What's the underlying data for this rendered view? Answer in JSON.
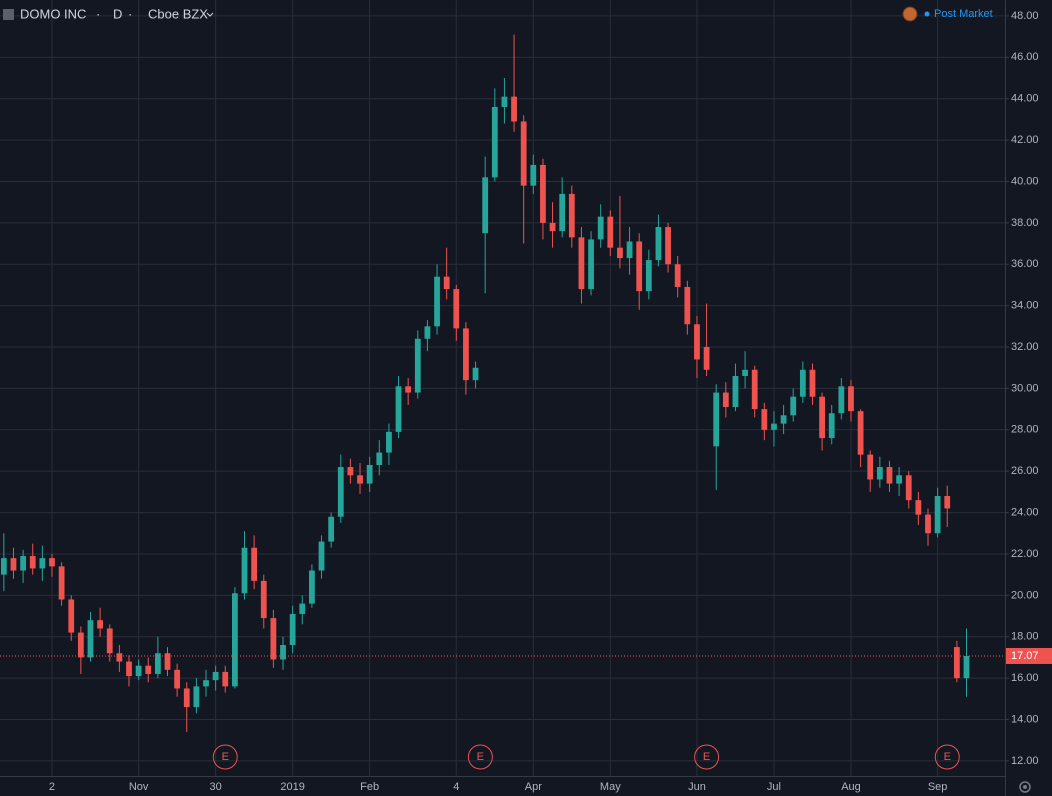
{
  "chart_data": {
    "type": "candlestick",
    "title": "DOMO INC",
    "interval": "D",
    "exchange": "Cboe BZX",
    "session": "Post Market",
    "up_color": "#26a69a",
    "down_color": "#ef5350",
    "grid": true,
    "ylim": [
      11.27,
      48.77
    ],
    "xlim": [
      -0.4,
      104
    ],
    "yticks": [
      {
        "value": 12,
        "label": "12.00"
      },
      {
        "value": 14,
        "label": "14.00"
      },
      {
        "value": 16,
        "label": "16.00"
      },
      {
        "value": 18,
        "label": "18.00"
      },
      {
        "value": 20,
        "label": "20.00"
      },
      {
        "value": 22,
        "label": "22.00"
      },
      {
        "value": 24,
        "label": "24.00"
      },
      {
        "value": 26,
        "label": "26.00"
      },
      {
        "value": 28,
        "label": "28.00"
      },
      {
        "value": 30,
        "label": "30.00"
      },
      {
        "value": 32,
        "label": "32.00"
      },
      {
        "value": 34,
        "label": "34.00"
      },
      {
        "value": 36,
        "label": "36.00"
      },
      {
        "value": 38,
        "label": "38.00"
      },
      {
        "value": 40,
        "label": "40.00"
      },
      {
        "value": 42,
        "label": "42.00"
      },
      {
        "value": 44,
        "label": "44.00"
      },
      {
        "value": 46,
        "label": "46.00"
      },
      {
        "value": 48,
        "label": "48.00"
      }
    ],
    "xticks": [
      {
        "value": 5,
        "label": "2"
      },
      {
        "value": 14,
        "label": "Nov"
      },
      {
        "value": 22,
        "label": "30"
      },
      {
        "value": 30,
        "label": "2019"
      },
      {
        "value": 38,
        "label": "Feb"
      },
      {
        "value": 47,
        "label": "4"
      },
      {
        "value": 55,
        "label": "Apr"
      },
      {
        "value": 63,
        "label": "May"
      },
      {
        "value": 72,
        "label": "Jun"
      },
      {
        "value": 80,
        "label": "Jul"
      },
      {
        "value": 88,
        "label": "Aug"
      },
      {
        "value": 97,
        "label": "Sep"
      }
    ],
    "events": [
      {
        "index": 23,
        "label": "E"
      },
      {
        "index": 49.5,
        "label": "E"
      },
      {
        "index": 73,
        "label": "E"
      },
      {
        "index": 98,
        "label": "E"
      }
    ],
    "ohlc": [
      [
        21,
        23,
        20.2,
        21.8
      ],
      [
        21.8,
        22.3,
        20.8,
        21.2
      ],
      [
        21.2,
        22.2,
        20.6,
        21.9
      ],
      [
        21.9,
        22.5,
        21,
        21.3
      ],
      [
        21.3,
        22.4,
        20.7,
        21.8
      ],
      [
        21.8,
        22,
        20.9,
        21.4
      ],
      [
        21.4,
        21.6,
        19.5,
        19.8
      ],
      [
        19.8,
        20,
        17.8,
        18.2
      ],
      [
        18.2,
        18.5,
        16.2,
        17
      ],
      [
        17,
        19.2,
        16.8,
        18.8
      ],
      [
        18.8,
        19.4,
        18,
        18.4
      ],
      [
        18.4,
        18.6,
        16.8,
        17.2
      ],
      [
        17.2,
        17.6,
        16.3,
        16.8
      ],
      [
        16.8,
        17.1,
        15.6,
        16.1
      ],
      [
        16.1,
        16.9,
        15.9,
        16.6
      ],
      [
        16.6,
        17,
        15.8,
        16.2
      ],
      [
        16.2,
        18,
        16,
        17.2
      ],
      [
        17.2,
        17.5,
        16.1,
        16.4
      ],
      [
        16.4,
        16.7,
        15.1,
        15.5
      ],
      [
        15.5,
        15.8,
        13.4,
        14.6
      ],
      [
        14.6,
        16,
        14.3,
        15.6
      ],
      [
        15.6,
        16.4,
        15.1,
        15.9
      ],
      [
        15.9,
        16.6,
        15.4,
        16.3
      ],
      [
        16.3,
        16.6,
        15.3,
        15.6
      ],
      [
        15.6,
        20.4,
        15.5,
        20.1
      ],
      [
        20.1,
        23.1,
        19.8,
        22.3
      ],
      [
        22.3,
        22.9,
        20.3,
        20.7
      ],
      [
        20.7,
        21,
        18.4,
        18.9
      ],
      [
        18.9,
        19.3,
        16.5,
        16.9
      ],
      [
        16.9,
        18,
        16.4,
        17.6
      ],
      [
        17.6,
        19.5,
        17.2,
        19.1
      ],
      [
        19.1,
        20,
        18.6,
        19.6
      ],
      [
        19.6,
        21.5,
        19.4,
        21.2
      ],
      [
        21.2,
        22.9,
        20.8,
        22.6
      ],
      [
        22.6,
        24,
        22.3,
        23.8
      ],
      [
        23.8,
        26.8,
        23.5,
        26.2
      ],
      [
        26.2,
        26.6,
        25.4,
        25.8
      ],
      [
        25.8,
        26.4,
        24.9,
        25.4
      ],
      [
        25.4,
        26.7,
        25,
        26.3
      ],
      [
        26.3,
        27.5,
        25.8,
        26.9
      ],
      [
        26.9,
        28.3,
        26.3,
        27.9
      ],
      [
        27.9,
        30.6,
        27.6,
        30.1
      ],
      [
        30.1,
        30.5,
        29.2,
        29.8
      ],
      [
        29.8,
        32.8,
        29.5,
        32.4
      ],
      [
        32.4,
        33.3,
        31.8,
        33
      ],
      [
        33,
        36,
        32.6,
        35.4
      ],
      [
        35.4,
        36.8,
        34.3,
        34.8
      ],
      [
        34.8,
        35,
        32.3,
        32.9
      ],
      [
        32.9,
        33.2,
        29.7,
        30.4
      ],
      [
        30.4,
        31.3,
        30,
        31
      ],
      [
        37.5,
        41.2,
        34.6,
        40.2
      ],
      [
        40.2,
        44.5,
        40,
        43.6
      ],
      [
        43.6,
        45,
        42.8,
        44.1
      ],
      [
        44.1,
        47.1,
        42.4,
        42.9
      ],
      [
        42.9,
        43.2,
        37,
        39.8
      ],
      [
        39.8,
        41.3,
        39.4,
        40.8
      ],
      [
        40.8,
        41.1,
        37.2,
        38
      ],
      [
        38,
        39,
        36.8,
        37.6
      ],
      [
        37.6,
        40.2,
        37.3,
        39.4
      ],
      [
        39.4,
        39.8,
        36.8,
        37.3
      ],
      [
        37.3,
        37.8,
        34.1,
        34.8
      ],
      [
        34.8,
        37.6,
        34.5,
        37.2
      ],
      [
        37.2,
        38.9,
        36.8,
        38.3
      ],
      [
        38.3,
        38.6,
        36.4,
        36.8
      ],
      [
        36.8,
        39.3,
        35.8,
        36.3
      ],
      [
        36.3,
        37.8,
        35.5,
        37.1
      ],
      [
        37.1,
        37.5,
        33.8,
        34.7
      ],
      [
        34.7,
        36.7,
        34.3,
        36.2
      ],
      [
        36.2,
        38.4,
        35.9,
        37.8
      ],
      [
        37.8,
        38,
        35.6,
        36
      ],
      [
        36,
        36.4,
        34.4,
        34.9
      ],
      [
        34.9,
        35.2,
        32.6,
        33.1
      ],
      [
        33.1,
        33.5,
        30.5,
        31.4
      ],
      [
        32,
        34.1,
        30.6,
        30.9
      ],
      [
        27.2,
        30.2,
        25.1,
        29.8
      ],
      [
        29.8,
        30.3,
        28.6,
        29.1
      ],
      [
        29.1,
        31.2,
        28.9,
        30.6
      ],
      [
        30.6,
        31.8,
        30,
        30.9
      ],
      [
        30.9,
        31.1,
        28.6,
        29
      ],
      [
        29,
        29.3,
        27.5,
        28
      ],
      [
        28,
        28.9,
        27.2,
        28.3
      ],
      [
        28.3,
        29.2,
        27.8,
        28.7
      ],
      [
        28.7,
        30,
        28.4,
        29.6
      ],
      [
        29.6,
        31.3,
        29.3,
        30.9
      ],
      [
        30.9,
        31.2,
        29.2,
        29.6
      ],
      [
        29.6,
        29.8,
        27,
        27.6
      ],
      [
        27.6,
        29.2,
        27.3,
        28.8
      ],
      [
        28.8,
        30.5,
        28.5,
        30.1
      ],
      [
        30.1,
        30.4,
        28.4,
        28.9
      ],
      [
        28.9,
        29,
        26.2,
        26.8
      ],
      [
        26.8,
        27,
        25,
        25.6
      ],
      [
        25.6,
        26.7,
        25.2,
        26.2
      ],
      [
        26.2,
        26.5,
        25,
        25.4
      ],
      [
        25.4,
        26.2,
        24.8,
        25.8
      ],
      [
        25.8,
        26,
        24.2,
        24.6
      ],
      [
        24.6,
        25,
        23.4,
        23.9
      ],
      [
        23.9,
        24.2,
        22.4,
        23
      ],
      [
        23,
        25.2,
        22.8,
        24.8
      ],
      [
        24.8,
        25.3,
        23.3,
        24.2
      ],
      [
        17.5,
        17.8,
        15.8,
        16
      ],
      [
        16,
        18.4,
        15.1,
        17.07
      ]
    ]
  }
}
